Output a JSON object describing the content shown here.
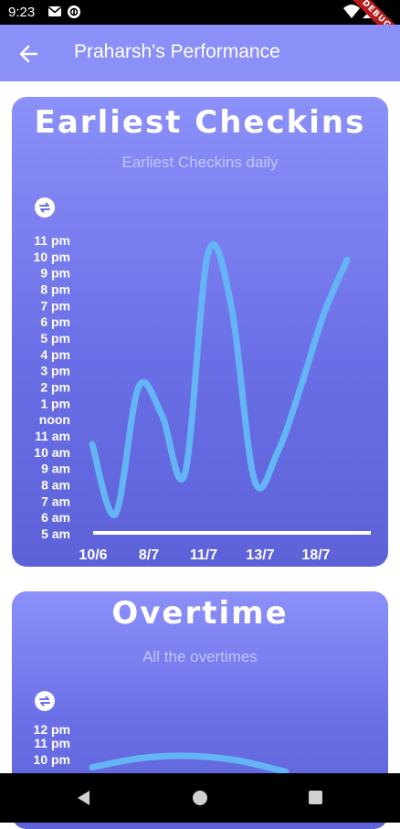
{
  "status_bar": {
    "time": "9:23",
    "debug_label": "DEBUG"
  },
  "app_bar": {
    "title": "Praharsh's Performance",
    "back_icon": "arrow-left-icon"
  },
  "colors": {
    "app_bar": "#8b8ff8",
    "card_top": "#8c90f9",
    "card_bottom": "#5d62d8",
    "line": "#64b5f6",
    "axis_line": "#ffffff",
    "subtitle": "#c3c6ff"
  },
  "cards": [
    {
      "title": "Earliest Checkins",
      "subtitle": "Earliest Checkins daily",
      "swap_icon": "swap-arrows-icon"
    },
    {
      "title": "Overtime",
      "subtitle": "All the overtimes",
      "swap_icon": "swap-arrows-icon"
    }
  ],
  "chart_data": [
    {
      "type": "line",
      "title": "Earliest Checkins",
      "subtitle": "Earliest Checkins daily",
      "x_tick_labels": [
        "10/6",
        "8/7",
        "11/7",
        "13/7",
        "18/7"
      ],
      "y_tick_labels": [
        "5 am",
        "6 am",
        "7 am",
        "8 am",
        "9 am",
        "10 am",
        "11 am",
        "noon",
        "1 pm",
        "2 pm",
        "3 pm",
        "4 pm",
        "5 pm",
        "6 pm",
        "7 pm",
        "8 pm",
        "9 pm",
        "10 pm",
        "11 pm"
      ],
      "ylim": [
        5,
        23
      ],
      "series": [
        {
          "x": [
            0,
            1,
            2,
            3,
            4,
            5,
            6,
            7,
            8,
            9,
            10,
            11
          ],
          "y": [
            10.5,
            6.2,
            14,
            12.3,
            8.7,
            22.2,
            19,
            8.3,
            10,
            14,
            18.5,
            21.8
          ]
        }
      ],
      "grid": false
    },
    {
      "type": "line",
      "title": "Overtime",
      "subtitle": "All the overtimes",
      "y_tick_labels_visible": [
        "10 pm",
        "11 pm",
        "12 pm"
      ],
      "ylim": [
        22,
        24
      ],
      "series": [
        {
          "x": [
            0,
            1,
            2,
            3,
            4
          ],
          "y": [
            22.3,
            22.7,
            22.8,
            22.6,
            22.1
          ]
        }
      ],
      "grid": false
    }
  ]
}
